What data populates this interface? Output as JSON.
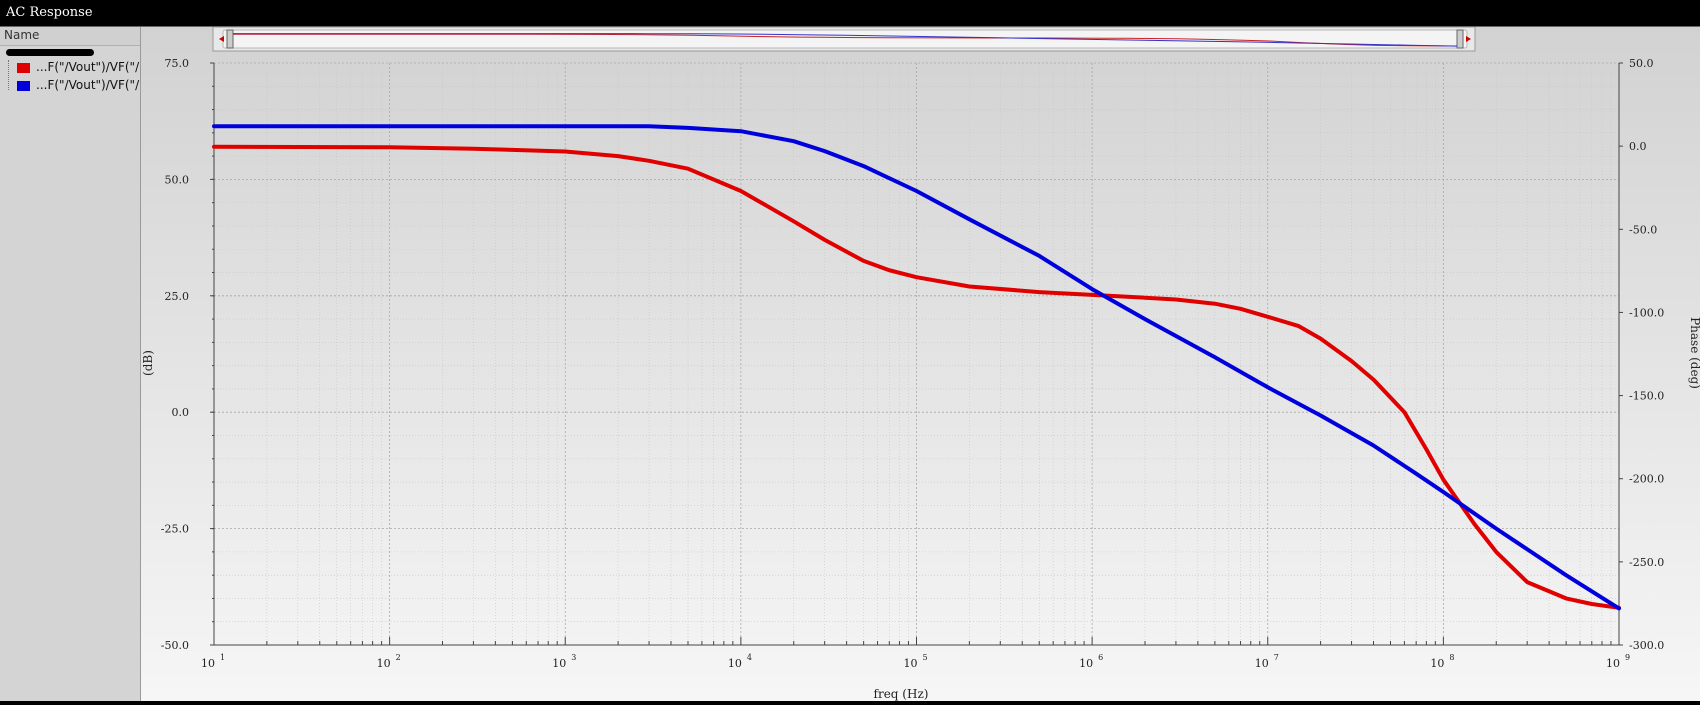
{
  "window": {
    "title": "AC Response"
  },
  "panel": {
    "header": "Name",
    "traces": [
      {
        "label": "...F(\"/Vout\")/VF(\"/\"",
        "color": "#e00000"
      },
      {
        "label": "...F(\"/Vout\")/VF(\"/\"",
        "color": "#0000dd"
      }
    ]
  },
  "chart_data": {
    "type": "line",
    "xlabel": "freq (Hz)",
    "xscale": "log",
    "xlim": [
      10,
      1000000000
    ],
    "x_tick_labels": [
      {
        "base": "10",
        "exp": "1"
      },
      {
        "base": "10",
        "exp": "2"
      },
      {
        "base": "10",
        "exp": "3"
      },
      {
        "base": "10",
        "exp": "4"
      },
      {
        "base": "10",
        "exp": "5"
      },
      {
        "base": "10",
        "exp": "6"
      },
      {
        "base": "10",
        "exp": "7"
      },
      {
        "base": "10",
        "exp": "8"
      },
      {
        "base": "10",
        "exp": "9"
      }
    ],
    "y_left": {
      "label": "(dB)",
      "lim": [
        -50,
        75
      ],
      "ticks": [
        "75.0",
        "50.0",
        "25.0",
        "0.0",
        "-25.0",
        "-50.0"
      ]
    },
    "y_right": {
      "label": "Phase (deg)",
      "lim": [
        -300,
        50
      ],
      "ticks": [
        "50.0",
        "0.0",
        "-50.0",
        "-100.0",
        "-150.0",
        "-200.0",
        "-250.0",
        "-300.0"
      ]
    },
    "grid": true,
    "series": [
      {
        "color": "#e00000",
        "axis": "left",
        "points": [
          [
            10,
            57
          ],
          [
            100,
            56.9
          ],
          [
            300,
            56.6
          ],
          [
            1000,
            56
          ],
          [
            2000,
            55
          ],
          [
            3000,
            54
          ],
          [
            5000,
            52.3
          ],
          [
            10000,
            47.5
          ],
          [
            20000,
            41
          ],
          [
            30000,
            37
          ],
          [
            50000,
            32.5
          ],
          [
            70000,
            30.5
          ],
          [
            100000,
            29
          ],
          [
            200000,
            27
          ],
          [
            500000,
            25.8
          ],
          [
            1000000,
            25.2
          ],
          [
            2000000,
            24.6
          ],
          [
            3000000,
            24.2
          ],
          [
            5000000,
            23.3
          ],
          [
            7000000,
            22.2
          ],
          [
            10000000,
            20.5
          ],
          [
            15000000,
            18.5
          ],
          [
            20000000,
            15.8
          ],
          [
            30000000,
            11
          ],
          [
            40000000,
            7
          ],
          [
            60000000,
            0
          ],
          [
            80000000,
            -8
          ],
          [
            100000000,
            -14.5
          ],
          [
            150000000,
            -24
          ],
          [
            200000000,
            -30
          ],
          [
            300000000,
            -36.5
          ],
          [
            500000000,
            -40
          ],
          [
            700000000,
            -41.2
          ],
          [
            1000000000,
            -42
          ]
        ]
      },
      {
        "color": "#0000dd",
        "axis": "right",
        "points": [
          [
            10,
            12
          ],
          [
            100,
            12
          ],
          [
            1000,
            12
          ],
          [
            3000,
            12
          ],
          [
            5000,
            11
          ],
          [
            10000,
            9
          ],
          [
            20000,
            3
          ],
          [
            30000,
            -3
          ],
          [
            50000,
            -12
          ],
          [
            100000,
            -27
          ],
          [
            200000,
            -44
          ],
          [
            500000,
            -66
          ],
          [
            1000000,
            -86
          ],
          [
            2000000,
            -104
          ],
          [
            5000000,
            -127
          ],
          [
            10000000,
            -145
          ],
          [
            20000000,
            -162
          ],
          [
            40000000,
            -180
          ],
          [
            70000000,
            -197
          ],
          [
            100000000,
            -208
          ],
          [
            200000000,
            -230
          ],
          [
            500000000,
            -258
          ],
          [
            1000000000,
            -278
          ]
        ]
      }
    ]
  },
  "slider": {
    "left_arrow_icon": "arrow-left-icon",
    "right_arrow_icon": "arrow-right-icon"
  }
}
